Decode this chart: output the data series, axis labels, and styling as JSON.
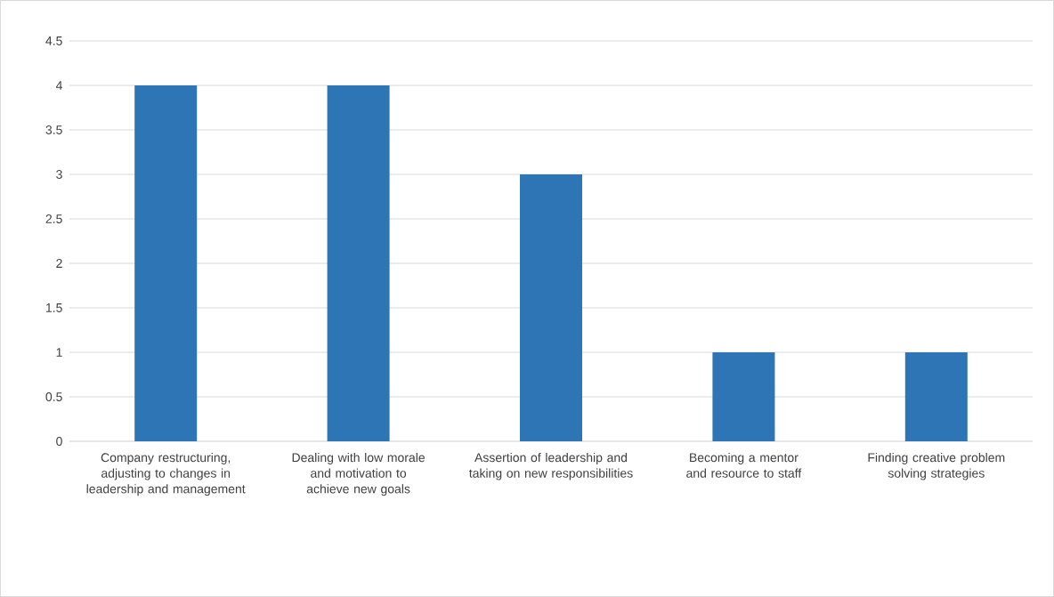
{
  "chart_data": {
    "type": "bar",
    "categories": [
      "Company restructuring, adjusting to changes in leadership and management",
      "Dealing with low morale and motivation to achieve new goals",
      "Assertion of leadership and taking on new responsibilities",
      "Becoming a mentor and resource to staff",
      "Finding creative problem solving strategies"
    ],
    "values": [
      4,
      4,
      3,
      1,
      1
    ],
    "color": "#2e75b6",
    "ylim": [
      0,
      4.5
    ],
    "yticks": [
      0,
      0.5,
      1,
      1.5,
      2,
      2.5,
      3,
      3.5,
      4,
      4.5
    ],
    "grid": "y"
  }
}
